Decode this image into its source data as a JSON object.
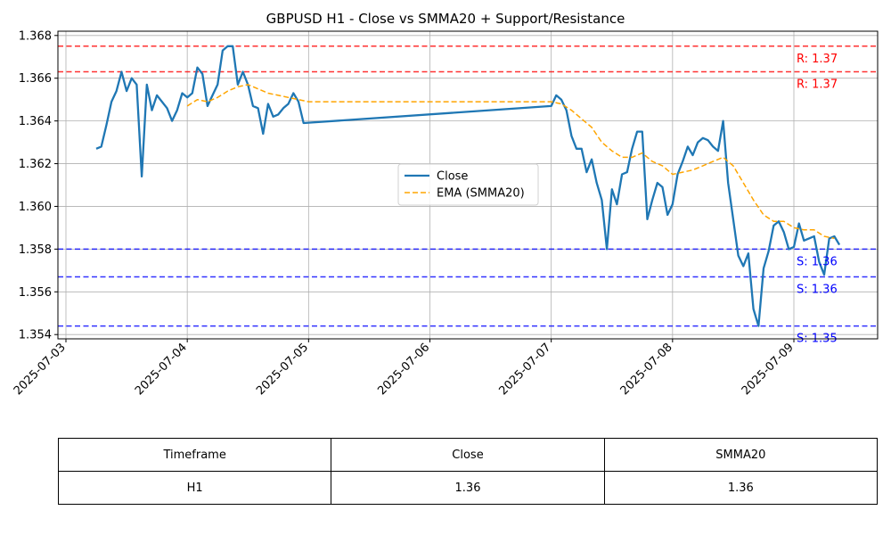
{
  "chart_data": {
    "type": "line",
    "title": "GBPUSD H1 - Close vs SMMA20 + Support/Resistance",
    "xlabel": "",
    "ylabel": "",
    "ylim": [
      1.3538,
      1.3682
    ],
    "grid": true,
    "legend_position": "center-right",
    "x_ticks": [
      "2025-07-03",
      "2025-07-04",
      "2025-07-05",
      "2025-07-06",
      "2025-07-07",
      "2025-07-08",
      "2025-07-09"
    ],
    "y_ticks": [
      "1.354",
      "1.356",
      "1.358",
      "1.360",
      "1.362",
      "1.364",
      "1.366",
      "1.368"
    ],
    "series": [
      {
        "name": "Close",
        "color": "#1f77b4",
        "style": "solid",
        "points": [
          [
            "2025-07-03 06:00",
            1.3627
          ],
          [
            "2025-07-03 07:00",
            1.3628
          ],
          [
            "2025-07-03 08:00",
            1.3638
          ],
          [
            "2025-07-03 09:00",
            1.3649
          ],
          [
            "2025-07-03 10:00",
            1.3654
          ],
          [
            "2025-07-03 11:00",
            1.3663
          ],
          [
            "2025-07-03 12:00",
            1.3654
          ],
          [
            "2025-07-03 13:00",
            1.366
          ],
          [
            "2025-07-03 14:00",
            1.3657
          ],
          [
            "2025-07-03 15:00",
            1.3614
          ],
          [
            "2025-07-03 16:00",
            1.3657
          ],
          [
            "2025-07-03 17:00",
            1.3645
          ],
          [
            "2025-07-03 18:00",
            1.3652
          ],
          [
            "2025-07-03 20:00",
            1.3646
          ],
          [
            "2025-07-03 21:00",
            1.364
          ],
          [
            "2025-07-03 22:00",
            1.3645
          ],
          [
            "2025-07-03 23:00",
            1.3653
          ],
          [
            "2025-07-04 00:00",
            1.3651
          ],
          [
            "2025-07-04 01:00",
            1.3653
          ],
          [
            "2025-07-04 02:00",
            1.3665
          ],
          [
            "2025-07-04 03:00",
            1.3662
          ],
          [
            "2025-07-04 04:00",
            1.3647
          ],
          [
            "2025-07-04 05:00",
            1.3652
          ],
          [
            "2025-07-04 06:00",
            1.3657
          ],
          [
            "2025-07-04 07:00",
            1.3673
          ],
          [
            "2025-07-04 08:00",
            1.3675
          ],
          [
            "2025-07-04 09:00",
            1.3675
          ],
          [
            "2025-07-04 10:00",
            1.3657
          ],
          [
            "2025-07-04 11:00",
            1.3663
          ],
          [
            "2025-07-04 12:00",
            1.3657
          ],
          [
            "2025-07-04 13:00",
            1.3647
          ],
          [
            "2025-07-04 14:00",
            1.3646
          ],
          [
            "2025-07-04 15:00",
            1.3634
          ],
          [
            "2025-07-04 16:00",
            1.3648
          ],
          [
            "2025-07-04 17:00",
            1.3642
          ],
          [
            "2025-07-04 18:00",
            1.3643
          ],
          [
            "2025-07-04 19:00",
            1.3646
          ],
          [
            "2025-07-04 20:00",
            1.3648
          ],
          [
            "2025-07-04 21:00",
            1.3653
          ],
          [
            "2025-07-04 22:00",
            1.3649
          ],
          [
            "2025-07-04 23:00",
            1.3639
          ],
          [
            "2025-07-07 00:00",
            1.3647
          ],
          [
            "2025-07-07 01:00",
            1.3652
          ],
          [
            "2025-07-07 02:00",
            1.365
          ],
          [
            "2025-07-07 03:00",
            1.3645
          ],
          [
            "2025-07-07 04:00",
            1.3633
          ],
          [
            "2025-07-07 05:00",
            1.3627
          ],
          [
            "2025-07-07 06:00",
            1.3627
          ],
          [
            "2025-07-07 07:00",
            1.3616
          ],
          [
            "2025-07-07 08:00",
            1.3622
          ],
          [
            "2025-07-07 09:00",
            1.3611
          ],
          [
            "2025-07-07 10:00",
            1.3603
          ],
          [
            "2025-07-07 11:00",
            1.358
          ],
          [
            "2025-07-07 12:00",
            1.3608
          ],
          [
            "2025-07-07 13:00",
            1.3601
          ],
          [
            "2025-07-07 14:00",
            1.3615
          ],
          [
            "2025-07-07 15:00",
            1.3616
          ],
          [
            "2025-07-07 16:00",
            1.3627
          ],
          [
            "2025-07-07 17:00",
            1.3635
          ],
          [
            "2025-07-07 18:00",
            1.3635
          ],
          [
            "2025-07-07 19:00",
            1.3594
          ],
          [
            "2025-07-07 20:00",
            1.3603
          ],
          [
            "2025-07-07 21:00",
            1.3611
          ],
          [
            "2025-07-07 22:00",
            1.3609
          ],
          [
            "2025-07-07 23:00",
            1.3596
          ],
          [
            "2025-07-08 00:00",
            1.3601
          ],
          [
            "2025-07-08 01:00",
            1.3615
          ],
          [
            "2025-07-08 02:00",
            1.3621
          ],
          [
            "2025-07-08 03:00",
            1.3628
          ],
          [
            "2025-07-08 04:00",
            1.3624
          ],
          [
            "2025-07-08 05:00",
            1.363
          ],
          [
            "2025-07-08 06:00",
            1.3632
          ],
          [
            "2025-07-08 07:00",
            1.3631
          ],
          [
            "2025-07-08 08:00",
            1.3628
          ],
          [
            "2025-07-08 09:00",
            1.3626
          ],
          [
            "2025-07-08 10:00",
            1.364
          ],
          [
            "2025-07-08 11:00",
            1.3611
          ],
          [
            "2025-07-08 12:00",
            1.3594
          ],
          [
            "2025-07-08 13:00",
            1.3577
          ],
          [
            "2025-07-08 14:00",
            1.3572
          ],
          [
            "2025-07-08 15:00",
            1.3578
          ],
          [
            "2025-07-08 16:00",
            1.3552
          ],
          [
            "2025-07-08 17:00",
            1.3544
          ],
          [
            "2025-07-08 18:00",
            1.3571
          ],
          [
            "2025-07-08 19:00",
            1.3579
          ],
          [
            "2025-07-08 20:00",
            1.3591
          ],
          [
            "2025-07-08 21:00",
            1.3593
          ],
          [
            "2025-07-08 22:00",
            1.3588
          ],
          [
            "2025-07-08 23:00",
            1.358
          ],
          [
            "2025-07-09 00:00",
            1.3581
          ],
          [
            "2025-07-09 01:00",
            1.3592
          ],
          [
            "2025-07-09 02:00",
            1.3584
          ],
          [
            "2025-07-09 03:00",
            1.3585
          ],
          [
            "2025-07-09 04:00",
            1.3586
          ],
          [
            "2025-07-09 05:00",
            1.3574
          ],
          [
            "2025-07-09 06:00",
            1.3568
          ],
          [
            "2025-07-09 07:00",
            1.3585
          ],
          [
            "2025-07-09 08:00",
            1.3586
          ],
          [
            "2025-07-09 09:00",
            1.3582
          ]
        ]
      },
      {
        "name": "EMA (SMMA20)",
        "color": "#ffa500",
        "style": "dashed",
        "points": [
          [
            "2025-07-04 00:00",
            1.3647
          ],
          [
            "2025-07-04 02:00",
            1.365
          ],
          [
            "2025-07-04 04:00",
            1.3649
          ],
          [
            "2025-07-04 06:00",
            1.3651
          ],
          [
            "2025-07-04 08:00",
            1.3654
          ],
          [
            "2025-07-04 10:00",
            1.3656
          ],
          [
            "2025-07-04 12:00",
            1.3657
          ],
          [
            "2025-07-04 14:00",
            1.3655
          ],
          [
            "2025-07-04 16:00",
            1.3653
          ],
          [
            "2025-07-04 18:00",
            1.3652
          ],
          [
            "2025-07-04 20:00",
            1.3651
          ],
          [
            "2025-07-04 22:00",
            1.365
          ],
          [
            "2025-07-05 00:00",
            1.3649
          ],
          [
            "2025-07-07 00:00",
            1.3649
          ],
          [
            "2025-07-07 02:00",
            1.3648
          ],
          [
            "2025-07-07 04:00",
            1.3645
          ],
          [
            "2025-07-07 06:00",
            1.3641
          ],
          [
            "2025-07-07 08:00",
            1.3637
          ],
          [
            "2025-07-07 10:00",
            1.363
          ],
          [
            "2025-07-07 12:00",
            1.3626
          ],
          [
            "2025-07-07 14:00",
            1.3623
          ],
          [
            "2025-07-07 16:00",
            1.3623
          ],
          [
            "2025-07-07 18:00",
            1.3625
          ],
          [
            "2025-07-07 20:00",
            1.3621
          ],
          [
            "2025-07-07 22:00",
            1.3619
          ],
          [
            "2025-07-08 00:00",
            1.3615
          ],
          [
            "2025-07-08 02:00",
            1.3616
          ],
          [
            "2025-07-08 04:00",
            1.3617
          ],
          [
            "2025-07-08 06:00",
            1.3619
          ],
          [
            "2025-07-08 08:00",
            1.3621
          ],
          [
            "2025-07-08 10:00",
            1.3623
          ],
          [
            "2025-07-08 12:00",
            1.3619
          ],
          [
            "2025-07-08 14:00",
            1.3611
          ],
          [
            "2025-07-08 16:00",
            1.3603
          ],
          [
            "2025-07-08 18:00",
            1.3596
          ],
          [
            "2025-07-08 20:00",
            1.3593
          ],
          [
            "2025-07-08 22:00",
            1.3593
          ],
          [
            "2025-07-09 00:00",
            1.359
          ],
          [
            "2025-07-09 02:00",
            1.3589
          ],
          [
            "2025-07-09 04:00",
            1.3589
          ],
          [
            "2025-07-09 06:00",
            1.3586
          ],
          [
            "2025-07-09 08:00",
            1.3585
          ]
        ]
      }
    ],
    "levels": [
      {
        "kind": "resistance",
        "value": 1.3675,
        "label": "R: 1.37",
        "color": "#ff0000"
      },
      {
        "kind": "resistance",
        "value": 1.3663,
        "label": "R: 1.37",
        "color": "#ff0000"
      },
      {
        "kind": "support",
        "value": 1.358,
        "label": "S: 1.36",
        "color": "#0000ff"
      },
      {
        "kind": "support",
        "value": 1.3567,
        "label": "S: 1.36",
        "color": "#0000ff"
      },
      {
        "kind": "support",
        "value": 1.3544,
        "label": "S: 1.35",
        "color": "#0000ff"
      }
    ]
  },
  "table": {
    "headers": [
      "Timeframe",
      "Close",
      "SMMA20"
    ],
    "row": [
      "H1",
      "1.36",
      "1.36"
    ]
  }
}
